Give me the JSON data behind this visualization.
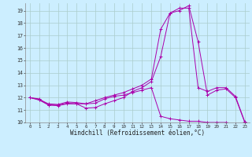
{
  "xlabel": "Windchill (Refroidissement éolien,°C)",
  "background_color": "#cceeff",
  "grid_color": "#aacccc",
  "line_color": "#aa00aa",
  "xlim": [
    -0.5,
    23.5
  ],
  "ylim": [
    10,
    19.6
  ],
  "yticks": [
    10,
    11,
    12,
    13,
    14,
    15,
    16,
    17,
    18,
    19
  ],
  "xticks": [
    0,
    1,
    2,
    3,
    4,
    5,
    6,
    7,
    8,
    9,
    10,
    11,
    12,
    13,
    14,
    15,
    16,
    17,
    18,
    19,
    20,
    21,
    22,
    23
  ],
  "x": [
    0,
    1,
    2,
    3,
    4,
    5,
    6,
    7,
    8,
    9,
    10,
    11,
    12,
    13,
    14,
    15,
    16,
    17,
    18,
    19,
    20,
    21,
    22,
    23
  ],
  "line1": [
    12.0,
    11.9,
    11.4,
    11.4,
    11.55,
    11.5,
    11.15,
    11.2,
    11.5,
    11.75,
    12.0,
    12.5,
    12.8,
    13.3,
    15.3,
    18.8,
    19.0,
    19.4,
    16.5,
    12.2,
    12.6,
    12.7,
    12.0,
    10.0
  ],
  "line2": [
    12.0,
    11.85,
    11.5,
    11.45,
    11.65,
    11.6,
    11.5,
    11.75,
    12.0,
    12.2,
    12.4,
    12.7,
    13.0,
    13.5,
    17.5,
    18.8,
    19.2,
    19.2,
    12.8,
    12.5,
    12.8,
    12.8,
    12.1,
    10.05
  ],
  "line3": [
    12.0,
    11.8,
    11.4,
    11.35,
    11.5,
    11.5,
    11.5,
    11.55,
    11.9,
    12.1,
    12.2,
    12.4,
    12.6,
    12.8,
    10.5,
    10.3,
    10.2,
    10.1,
    10.1,
    10.0,
    10.0,
    10.0,
    9.9,
    10.0
  ]
}
